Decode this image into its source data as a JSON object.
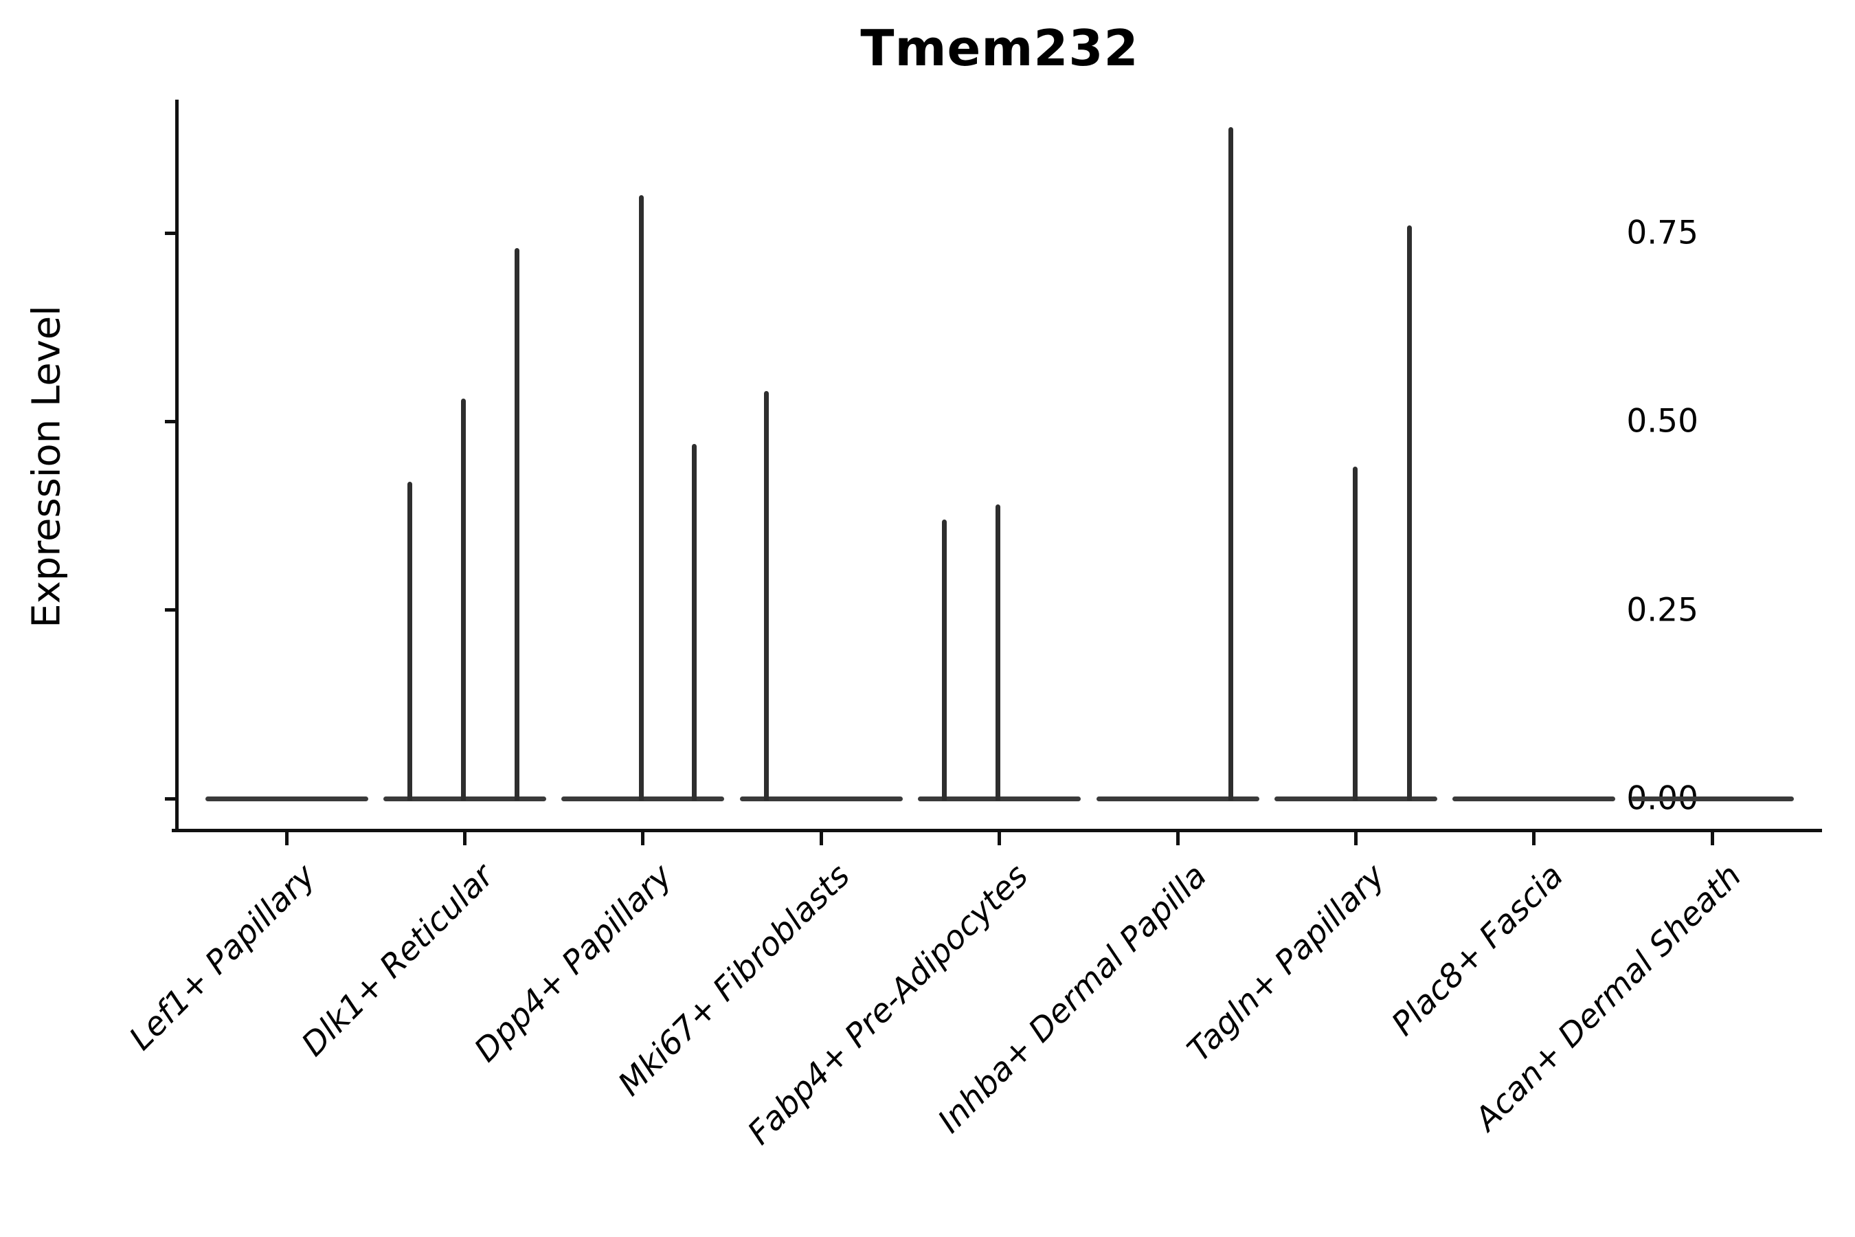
{
  "chart_data": {
    "type": "violin",
    "title": "Tmem232",
    "xlabel": "",
    "ylabel": "Expression Level",
    "legend": "none",
    "grid": false,
    "ylim": [
      -0.04,
      0.93
    ],
    "yticks": [
      {
        "value": 0.0,
        "label": "0.00"
      },
      {
        "value": 0.25,
        "label": "0.25"
      },
      {
        "value": 0.5,
        "label": "0.50"
      },
      {
        "value": 0.75,
        "label": "0.75"
      }
    ],
    "categories": [
      "Lef1+ Papillary",
      "Dlk1+ Reticular",
      "Dpp4+ Papillary",
      "Mki67+ Fibroblasts",
      "Fabp4+ Pre-Adipocytes",
      "Inhba+ Dermal Papilla",
      "Tagln+ Papillary",
      "Plac8+ Fascia",
      "Acan+ Dermal Sheath"
    ],
    "groups": [
      {
        "category": "Lef1+ Papillary",
        "baseline_value": 0.0,
        "spikes": []
      },
      {
        "category": "Dlk1+ Reticular",
        "baseline_value": 0.0,
        "spikes": [
          {
            "pos": -0.675,
            "value": 0.42
          },
          {
            "pos": -0.02,
            "value": 0.53
          },
          {
            "pos": 0.64,
            "value": 0.73
          }
        ]
      },
      {
        "category": "Dpp4+ Papillary",
        "baseline_value": 0.0,
        "spikes": [
          {
            "pos": -0.02,
            "value": 0.8
          },
          {
            "pos": 0.63,
            "value": 0.47
          }
        ]
      },
      {
        "category": "Mki67+ Fibroblasts",
        "baseline_value": 0.0,
        "spikes": [
          {
            "pos": -0.67,
            "value": 0.54
          }
        ]
      },
      {
        "category": "Fabp4+ Pre-Adipocytes",
        "baseline_value": 0.0,
        "spikes": [
          {
            "pos": -0.675,
            "value": 0.37
          },
          {
            "pos": -0.02,
            "value": 0.39
          }
        ]
      },
      {
        "category": "Inhba+ Dermal Papilla",
        "baseline_value": 0.0,
        "spikes": [
          {
            "pos": 0.65,
            "value": 0.89
          }
        ]
      },
      {
        "category": "Tagln+ Papillary",
        "baseline_value": 0.0,
        "spikes": [
          {
            "pos": -0.01,
            "value": 0.44
          },
          {
            "pos": 0.66,
            "value": 0.76
          }
        ]
      },
      {
        "category": "Plac8+ Fascia",
        "baseline_value": 0.0,
        "spikes": []
      },
      {
        "category": "Acan+ Dermal Sheath",
        "baseline_value": 0.0,
        "spikes": []
      }
    ]
  }
}
